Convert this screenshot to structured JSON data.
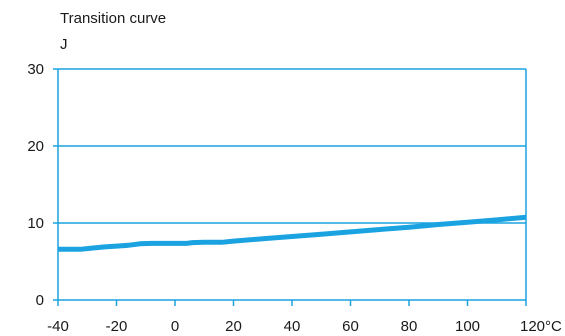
{
  "chart_data": {
    "type": "line",
    "title": "Transition curve",
    "ylabel": "J",
    "xlabel": "",
    "xlim": [
      -40,
      120
    ],
    "ylim": [
      0,
      30
    ],
    "x_ticks": [
      -40,
      -20,
      0,
      20,
      40,
      60,
      80,
      100,
      120
    ],
    "x_tick_labels": [
      "-40",
      "-20",
      "0",
      "20",
      "40",
      "60",
      "80",
      "100",
      "120°C"
    ],
    "y_ticks": [
      0,
      10,
      20,
      30
    ],
    "y_tick_labels": [
      "0",
      "10",
      "20",
      "30"
    ],
    "grid": "horizontal",
    "series": [
      {
        "color": "#1aa3e0",
        "x": [
          -40,
          -32,
          -28,
          -24,
          -20,
          -16,
          -12,
          -8,
          -4,
          0,
          4,
          6,
          10,
          16,
          20,
          30,
          40,
          50,
          60,
          70,
          80,
          90,
          100,
          110,
          120
        ],
        "values": [
          6.6,
          6.6,
          6.75,
          6.9,
          7.0,
          7.1,
          7.3,
          7.35,
          7.35,
          7.35,
          7.35,
          7.45,
          7.5,
          7.5,
          7.65,
          7.95,
          8.25,
          8.55,
          8.85,
          9.15,
          9.45,
          9.8,
          10.1,
          10.4,
          10.75
        ]
      }
    ]
  }
}
